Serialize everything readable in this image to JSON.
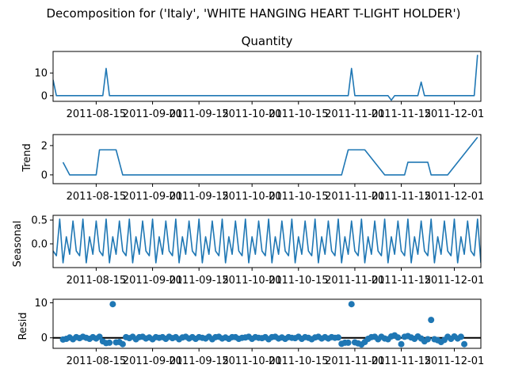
{
  "figure": {
    "suptitle": "Decomposition for ('Italy', 'WHITE HANGING HEART T-LIGHT HOLDER')"
  },
  "colors": {
    "series": "#1f77b4",
    "zero_line": "#000000",
    "axes": "#000000"
  },
  "chart_data": [
    {
      "type": "line",
      "panel": "observed",
      "title": "Quantity",
      "ylabel": "",
      "x_start": "2011-08-02",
      "x_end": "2011-12-09",
      "ylim": [
        -2.5,
        19.5
      ],
      "yticks": [
        0,
        10
      ],
      "xtick_labels": [
        "2011-08-15",
        "2011-09-01",
        "2011-09-15",
        "2011-10-01",
        "2011-10-15",
        "2011-11-01",
        "2011-11-15",
        "2011-12-01"
      ],
      "x": [
        "2011-08-02",
        "2011-08-03",
        "2011-08-17",
        "2011-08-18",
        "2011-08-19",
        "2011-10-30",
        "2011-10-31",
        "2011-11-01",
        "2011-11-11",
        "2011-11-12",
        "2011-11-13",
        "2011-11-20",
        "2011-11-21",
        "2011-11-22",
        "2011-12-07",
        "2011-12-08"
      ],
      "y": [
        7,
        0,
        0,
        12,
        0,
        0,
        12,
        0,
        0,
        -2,
        0,
        0,
        6,
        0,
        0,
        18
      ]
    },
    {
      "type": "line",
      "panel": "trend",
      "title": "",
      "ylabel": "Trend",
      "x_start": "2011-08-02",
      "x_end": "2011-12-09",
      "ylim": [
        -0.6,
        2.75
      ],
      "yticks": [
        0,
        2
      ],
      "xtick_labels": [
        "2011-08-15",
        "2011-09-01",
        "2011-09-15",
        "2011-10-01",
        "2011-10-15",
        "2011-11-01",
        "2011-11-15",
        "2011-12-01"
      ],
      "x": [
        "2011-08-05",
        "2011-08-07",
        "2011-08-14",
        "2011-08-15",
        "2011-08-16",
        "2011-08-21",
        "2011-08-23",
        "2011-09-02",
        "2011-10-28",
        "2011-10-30",
        "2011-11-04",
        "2011-11-10",
        "2011-11-11",
        "2011-11-16",
        "2011-11-17",
        "2011-11-18",
        "2011-11-23",
        "2011-11-24",
        "2011-11-29",
        "2011-12-08"
      ],
      "y": [
        0.86,
        0,
        0,
        0,
        1.71,
        1.71,
        0,
        0,
        0,
        1.71,
        1.71,
        0,
        0,
        0,
        0.86,
        0.86,
        0.86,
        0,
        0,
        2.57
      ]
    },
    {
      "type": "line",
      "panel": "seasonal",
      "title": "",
      "ylabel": "Seasonal",
      "x_start": "2011-08-02",
      "x_end": "2011-12-09",
      "ylim": [
        -0.5,
        0.6
      ],
      "yticks": [
        0.0,
        0.5
      ],
      "xtick_labels": [
        "2011-08-15",
        "2011-09-01",
        "2011-09-15",
        "2011-10-01",
        "2011-10-15",
        "2011-11-01",
        "2011-11-15",
        "2011-12-01"
      ],
      "period_start": "2011-08-02",
      "period_values": [
        -0.15,
        -0.25,
        0.52,
        -0.4,
        0.15,
        -0.22,
        0.48
      ]
    },
    {
      "type": "scatter",
      "panel": "resid",
      "title": "",
      "ylabel": "Resid",
      "x_start": "2011-08-02",
      "x_end": "2011-12-09",
      "ylim": [
        -3,
        11
      ],
      "yticks": [
        0,
        10
      ],
      "zero_line": true,
      "xtick_labels": [
        "2011-08-15",
        "2011-09-01",
        "2011-09-15",
        "2011-10-01",
        "2011-10-15",
        "2011-11-01",
        "2011-11-15",
        "2011-12-01"
      ],
      "x": [
        "2011-08-05",
        "2011-08-06",
        "2011-08-07",
        "2011-08-08",
        "2011-08-09",
        "2011-08-10",
        "2011-08-11",
        "2011-08-12",
        "2011-08-13",
        "2011-08-14",
        "2011-08-15",
        "2011-08-16",
        "2011-08-17",
        "2011-08-18",
        "2011-08-19",
        "2011-08-20",
        "2011-08-21",
        "2011-08-22",
        "2011-08-23",
        "2011-08-24",
        "2011-08-25",
        "2011-08-26",
        "2011-08-27",
        "2011-08-28",
        "2011-08-29",
        "2011-08-30",
        "2011-08-31",
        "2011-09-01",
        "2011-09-02",
        "2011-09-03",
        "2011-09-04",
        "2011-09-05",
        "2011-09-06",
        "2011-09-07",
        "2011-09-08",
        "2011-09-09",
        "2011-09-10",
        "2011-09-11",
        "2011-09-12",
        "2011-09-13",
        "2011-09-14",
        "2011-09-15",
        "2011-09-16",
        "2011-09-17",
        "2011-09-18",
        "2011-09-19",
        "2011-09-20",
        "2011-09-21",
        "2011-09-22",
        "2011-09-23",
        "2011-09-24",
        "2011-09-25",
        "2011-09-26",
        "2011-09-27",
        "2011-09-28",
        "2011-09-29",
        "2011-09-30",
        "2011-10-01",
        "2011-10-02",
        "2011-10-03",
        "2011-10-04",
        "2011-10-05",
        "2011-10-06",
        "2011-10-07",
        "2011-10-08",
        "2011-10-09",
        "2011-10-10",
        "2011-10-11",
        "2011-10-12",
        "2011-10-13",
        "2011-10-14",
        "2011-10-15",
        "2011-10-16",
        "2011-10-17",
        "2011-10-18",
        "2011-10-19",
        "2011-10-20",
        "2011-10-21",
        "2011-10-22",
        "2011-10-23",
        "2011-10-24",
        "2011-10-25",
        "2011-10-26",
        "2011-10-27",
        "2011-10-28",
        "2011-10-29",
        "2011-10-30",
        "2011-10-31",
        "2011-11-01",
        "2011-11-02",
        "2011-11-03",
        "2011-11-04",
        "2011-11-05",
        "2011-11-06",
        "2011-11-07",
        "2011-11-08",
        "2011-11-09",
        "2011-11-10",
        "2011-11-11",
        "2011-11-12",
        "2011-11-13",
        "2011-11-14",
        "2011-11-15",
        "2011-11-16",
        "2011-11-17",
        "2011-11-18",
        "2011-11-19",
        "2011-11-20",
        "2011-11-21",
        "2011-11-22",
        "2011-11-23",
        "2011-11-24",
        "2011-11-25",
        "2011-11-26",
        "2011-11-27",
        "2011-11-28",
        "2011-11-29",
        "2011-11-30",
        "2011-12-01",
        "2011-12-02",
        "2011-12-03",
        "2011-12-04"
      ],
      "y": [
        -0.5,
        -0.3,
        0.1,
        -0.4,
        0.2,
        -0.1,
        0.3,
        0.0,
        -0.3,
        0.2,
        -0.2,
        0.3,
        -1.0,
        -1.5,
        -1.4,
        9.6,
        -1.3,
        -1.2,
        -1.8,
        0.2,
        -0.1,
        0.3,
        -0.4,
        0.2,
        0.3,
        -0.2,
        0.1,
        -0.4,
        0.2,
        0.0,
        0.2,
        -0.3,
        0.3,
        -0.1,
        0.2,
        -0.4,
        0.1,
        0.3,
        -0.2,
        0.2,
        -0.3,
        0.2,
        0.0,
        -0.2,
        0.3,
        -0.4,
        0.2,
        0.3,
        -0.2,
        0.1,
        -0.3,
        0.2,
        0.2,
        -0.3,
        0.0,
        0.1,
        0.3,
        -0.3,
        0.2,
        0.0,
        -0.1,
        0.2,
        -0.4,
        0.2,
        0.3,
        -0.2,
        0.1,
        -0.3,
        0.2,
        0.0,
        -0.1,
        0.3,
        -0.3,
        0.2,
        0.0,
        -0.4,
        0.1,
        0.3,
        -0.2,
        0.2,
        -0.2,
        0.2,
        0.0,
        0.1,
        -1.7,
        -1.4,
        -1.4,
        9.6,
        -1.3,
        -1.6,
        -1.9,
        -1.2,
        -0.3,
        0.2,
        0.3,
        -0.4,
        0.3,
        -0.2,
        -0.4,
        0.4,
        0.7,
        0.1,
        -1.8,
        0.3,
        0.5,
        0.1,
        -0.3,
        0.4,
        -0.2,
        -1.0,
        -0.4,
        5.1,
        -0.4,
        -0.7,
        -1.2,
        -0.6,
        0.3,
        -0.3,
        0.4,
        -0.2,
        0.3,
        -1.8
      ]
    }
  ]
}
